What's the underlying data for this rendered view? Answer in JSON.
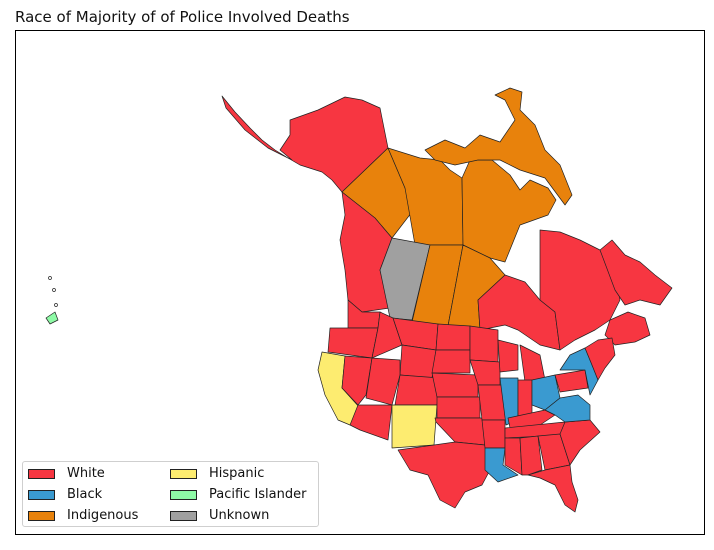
{
  "title": "Race of Majority of of Police Involved Deaths",
  "colors": {
    "white": "#f73641",
    "black": "#3a9ad0",
    "indigenous": "#e8820c",
    "hispanic": "#fdec70",
    "pacific_islander": "#8efaa6",
    "unknown": "#a0a0a0"
  },
  "legend": [
    {
      "label": "White",
      "color": "#f73641"
    },
    {
      "label": "Black",
      "color": "#3a9ad0"
    },
    {
      "label": "Indigenous",
      "color": "#e8820c"
    },
    {
      "label": "Hispanic",
      "color": "#fdec70"
    },
    {
      "label": "Pacific Islander",
      "color": "#8efaa6"
    },
    {
      "label": "Unknown",
      "color": "#a0a0a0"
    }
  ]
}
